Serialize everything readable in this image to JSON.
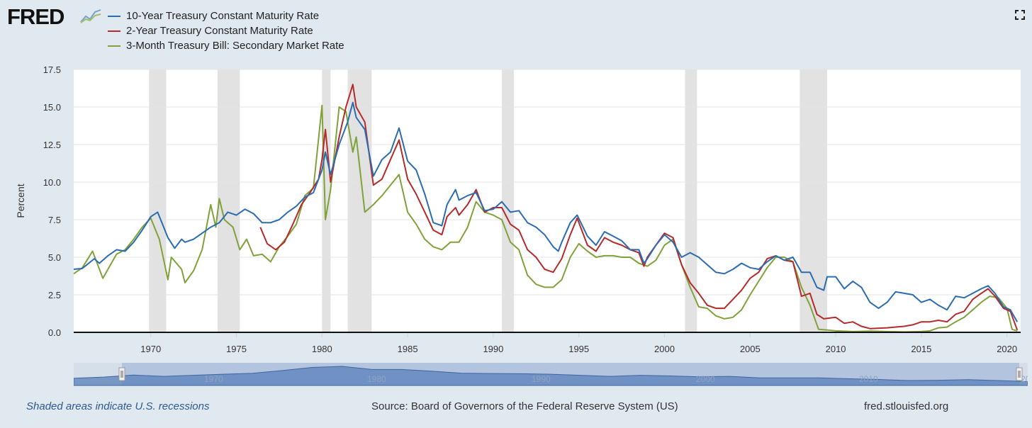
{
  "header": {
    "logo_text": "FRED",
    "legend": [
      {
        "label": "10-Year Treasury Constant Maturity Rate",
        "color": "#2b6cb0"
      },
      {
        "label": "2-Year Treasury Constant Maturity Rate",
        "color": "#b52a2a"
      },
      {
        "label": "3-Month Treasury Bill: Secondary Market Rate",
        "color": "#7fa23a"
      }
    ]
  },
  "chart_data": {
    "type": "line",
    "ylabel": "Percent",
    "xlabel": "",
    "ylim": [
      0,
      17.5
    ],
    "xlim": [
      1965.5,
      2020.8
    ],
    "y_ticks": [
      "0.0",
      "2.5",
      "5.0",
      "7.5",
      "10.0",
      "12.5",
      "15.0",
      "17.5"
    ],
    "x_ticks": [
      "1970",
      "1975",
      "1980",
      "1985",
      "1990",
      "1995",
      "2000",
      "2005",
      "2010",
      "2015",
      "2020"
    ],
    "recessions": [
      [
        1969.9,
        1970.9
      ],
      [
        1973.9,
        1975.2
      ],
      [
        1980.0,
        1980.5
      ],
      [
        1981.5,
        1982.9
      ],
      [
        1990.5,
        1991.2
      ],
      [
        2001.2,
        2001.9
      ],
      [
        2007.9,
        2009.5
      ]
    ],
    "series": [
      {
        "name": "10-Year Treasury Constant Maturity Rate",
        "color": "#2b6cb0",
        "x": [
          1965.5,
          1966,
          1966.7,
          1967,
          1967.5,
          1968,
          1968.5,
          1969,
          1969.5,
          1970,
          1970.4,
          1971,
          1971.4,
          1971.8,
          1972,
          1972.5,
          1973,
          1973.5,
          1974,
          1974.5,
          1975,
          1975.5,
          1976,
          1976.5,
          1977,
          1977.5,
          1978,
          1978.5,
          1979,
          1979.5,
          1980,
          1980.2,
          1980.5,
          1981,
          1981.5,
          1981.8,
          1982,
          1982.5,
          1983,
          1983.5,
          1984,
          1984.5,
          1985,
          1985.5,
          1986,
          1986.5,
          1987,
          1987.3,
          1987.8,
          1988,
          1988.5,
          1989,
          1989.5,
          1990,
          1990.5,
          1991,
          1991.5,
          1992,
          1992.5,
          1993,
          1993.5,
          1993.8,
          1994,
          1994.5,
          1994.9,
          1995.5,
          1996,
          1996.5,
          1997,
          1997.5,
          1998,
          1998.5,
          1998.8,
          1999,
          1999.5,
          2000,
          2000.5,
          2001,
          2001.5,
          2002,
          2002.5,
          2003,
          2003.5,
          2004,
          2004.5,
          2005,
          2005.5,
          2006,
          2006.5,
          2007,
          2007.5,
          2008,
          2008.5,
          2008.9,
          2009.3,
          2009.5,
          2010,
          2010.5,
          2011,
          2011.5,
          2012,
          2012.5,
          2013,
          2013.5,
          2014,
          2014.5,
          2015,
          2015.5,
          2016,
          2016.5,
          2017,
          2017.5,
          2018,
          2018.5,
          2018.9,
          2019.3,
          2019.8,
          2020.2,
          2020.6
        ],
        "y": [
          4.2,
          4.25,
          4.9,
          4.6,
          5.1,
          5.5,
          5.4,
          6.0,
          6.8,
          7.7,
          8.0,
          6.3,
          5.6,
          6.2,
          6.0,
          6.2,
          6.6,
          7.0,
          7.3,
          8.0,
          7.8,
          8.2,
          7.9,
          7.3,
          7.3,
          7.5,
          8.0,
          8.4,
          9.0,
          9.3,
          10.8,
          12.0,
          10.5,
          12.5,
          14.0,
          15.3,
          14.3,
          13.5,
          10.4,
          11.5,
          12.0,
          13.6,
          11.4,
          10.8,
          9.2,
          7.3,
          7.1,
          8.5,
          9.5,
          8.8,
          9.1,
          9.3,
          8.1,
          8.2,
          8.7,
          8.0,
          8.1,
          7.3,
          7.0,
          6.5,
          5.7,
          5.4,
          6.0,
          7.3,
          7.8,
          6.4,
          5.8,
          6.7,
          6.4,
          6.1,
          5.5,
          5.5,
          4.6,
          4.9,
          5.8,
          6.5,
          6.0,
          5.0,
          5.3,
          5.0,
          4.5,
          4.0,
          3.9,
          4.2,
          4.6,
          4.3,
          4.2,
          4.7,
          5.1,
          4.8,
          5.0,
          4.0,
          4.0,
          3.0,
          2.8,
          3.7,
          3.7,
          2.9,
          3.4,
          3.0,
          2.0,
          1.6,
          2.0,
          2.7,
          2.6,
          2.5,
          2.0,
          2.2,
          1.8,
          1.5,
          2.4,
          2.3,
          2.6,
          2.9,
          3.1,
          2.6,
          1.7,
          1.5,
          0.7
        ]
      },
      {
        "name": "2-Year Treasury Constant Maturity Rate",
        "color": "#b52a2a",
        "x": [
          1976.4,
          1976.8,
          1977.3,
          1977.8,
          1978.3,
          1978.8,
          1979.3,
          1979.8,
          1980.0,
          1980.2,
          1980.5,
          1981,
          1981.4,
          1981.8,
          1982,
          1982.5,
          1983,
          1983.5,
          1984,
          1984.5,
          1985,
          1985.5,
          1986,
          1986.5,
          1987,
          1987.3,
          1987.8,
          1988,
          1988.5,
          1989,
          1989.5,
          1990,
          1990.5,
          1991,
          1991.5,
          1992,
          1992.5,
          1993,
          1993.5,
          1994,
          1994.5,
          1994.9,
          1995.5,
          1996,
          1996.5,
          1997,
          1997.5,
          1998,
          1998.5,
          1998.8,
          1999,
          1999.5,
          2000,
          2000.5,
          2001,
          2001.5,
          2002,
          2002.5,
          2003,
          2003.5,
          2004,
          2004.5,
          2005,
          2005.5,
          2006,
          2006.5,
          2007,
          2007.5,
          2008,
          2008.5,
          2008.9,
          2009.3,
          2010,
          2010.5,
          2011,
          2011.5,
          2012,
          2013,
          2014,
          2014.5,
          2015,
          2015.5,
          2016,
          2016.5,
          2017,
          2017.5,
          2018,
          2018.5,
          2018.9,
          2019.3,
          2019.8,
          2020.2,
          2020.6
        ],
        "y": [
          7.0,
          5.9,
          5.5,
          6.0,
          7.2,
          8.5,
          9.3,
          10.2,
          11.5,
          13.5,
          10.0,
          13.0,
          15.0,
          16.5,
          15.0,
          14.0,
          9.8,
          10.2,
          11.5,
          12.8,
          10.2,
          9.2,
          8.0,
          6.8,
          6.5,
          7.7,
          8.3,
          7.8,
          8.5,
          9.5,
          8.0,
          8.3,
          8.3,
          7.2,
          6.8,
          5.5,
          5.0,
          4.2,
          4.0,
          4.9,
          6.5,
          7.6,
          5.8,
          5.4,
          6.3,
          6.0,
          5.8,
          5.5,
          5.3,
          4.4,
          5.0,
          5.8,
          6.6,
          6.3,
          4.5,
          3.3,
          2.6,
          1.8,
          1.6,
          1.6,
          2.2,
          2.8,
          3.6,
          4.0,
          4.9,
          5.1,
          4.8,
          4.7,
          2.4,
          2.6,
          1.2,
          0.9,
          1.0,
          0.6,
          0.7,
          0.4,
          0.25,
          0.3,
          0.4,
          0.5,
          0.7,
          0.7,
          0.8,
          0.7,
          1.2,
          1.4,
          2.2,
          2.6,
          2.9,
          2.4,
          1.6,
          1.4,
          0.15
        ]
      },
      {
        "name": "3-Month Treasury Bill: Secondary Market Rate",
        "color": "#7fa23a",
        "x": [
          1965.5,
          1966,
          1966.6,
          1967.2,
          1967.5,
          1968,
          1968.5,
          1969,
          1969.5,
          1970,
          1970.5,
          1971,
          1971.2,
          1971.8,
          1972,
          1972.5,
          1973,
          1973.5,
          1973.8,
          1974,
          1974.3,
          1974.8,
          1975.2,
          1975.6,
          1976,
          1976.5,
          1977,
          1977.5,
          1978,
          1978.5,
          1979,
          1979.5,
          1980,
          1980.2,
          1980.5,
          1981,
          1981.4,
          1981.8,
          1982,
          1982.5,
          1983,
          1983.5,
          1984,
          1984.5,
          1985,
          1985.5,
          1986,
          1986.5,
          1987,
          1987.5,
          1988,
          1988.5,
          1989,
          1989.5,
          1990,
          1990.5,
          1991,
          1991.5,
          1992,
          1992.5,
          1993,
          1993.5,
          1994,
          1994.5,
          1995,
          1995.5,
          1996,
          1996.5,
          1997,
          1997.5,
          1998,
          1998.5,
          1999,
          1999.5,
          2000,
          2000.5,
          2001,
          2001.5,
          2002,
          2002.5,
          2003,
          2003.5,
          2004,
          2004.5,
          2005,
          2005.5,
          2006,
          2006.5,
          2007,
          2007.5,
          2008,
          2008.5,
          2009,
          2009.5,
          2010,
          2011,
          2012,
          2013,
          2014,
          2015,
          2015.5,
          2016,
          2016.5,
          2017,
          2017.5,
          2018,
          2018.5,
          2019,
          2019.5,
          2020,
          2020.3,
          2020.6
        ],
        "y": [
          3.9,
          4.3,
          5.4,
          3.6,
          4.2,
          5.2,
          5.5,
          6.2,
          7.0,
          7.6,
          6.2,
          3.5,
          5.0,
          4.2,
          3.3,
          4.1,
          5.5,
          8.5,
          7.0,
          8.9,
          7.5,
          7.0,
          5.5,
          6.2,
          5.1,
          5.2,
          4.7,
          5.7,
          6.4,
          7.2,
          9.1,
          9.6,
          15.1,
          7.5,
          9.5,
          15.0,
          14.7,
          12.0,
          13.0,
          8.0,
          8.5,
          9.1,
          9.8,
          10.5,
          8.0,
          7.2,
          6.2,
          5.7,
          5.5,
          6.0,
          6.0,
          7.0,
          8.7,
          8.0,
          7.8,
          7.5,
          6.0,
          5.5,
          3.8,
          3.2,
          3.0,
          3.0,
          3.5,
          5.0,
          5.9,
          5.4,
          5.0,
          5.1,
          5.1,
          5.0,
          5.0,
          4.6,
          4.4,
          4.8,
          5.8,
          6.2,
          4.5,
          3.0,
          1.7,
          1.6,
          1.1,
          0.9,
          1.0,
          1.5,
          2.5,
          3.4,
          4.3,
          5.0,
          5.0,
          4.7,
          3.0,
          1.8,
          0.2,
          0.15,
          0.1,
          0.05,
          0.08,
          0.05,
          0.03,
          0.05,
          0.1,
          0.3,
          0.35,
          0.7,
          1.0,
          1.5,
          2.0,
          2.4,
          2.3,
          1.6,
          0.2,
          0.1
        ]
      }
    ]
  },
  "navigator": {
    "labels": [
      "1970",
      "1980",
      "1990",
      "2000",
      "2010",
      "20"
    ],
    "overview": [
      4.2,
      5.3,
      7.3,
      6.0,
      7.0,
      8.0,
      8.9,
      11.5,
      14.5,
      15.5,
      12.5,
      12.5,
      11.0,
      9.0,
      8.7,
      8.5,
      8.0,
      7.0,
      6.0,
      7.0,
      6.4,
      5.5,
      6.0,
      4.5,
      4.5,
      4.6,
      3.7,
      3.0,
      2.0,
      2.3,
      2.8,
      2.0,
      1.0
    ]
  },
  "footer": {
    "note": "Shaded areas indicate U.S. recessions",
    "source": "Source: Board of Governors of the Federal Reserve System (US)",
    "link": "fred.stlouisfed.org"
  }
}
